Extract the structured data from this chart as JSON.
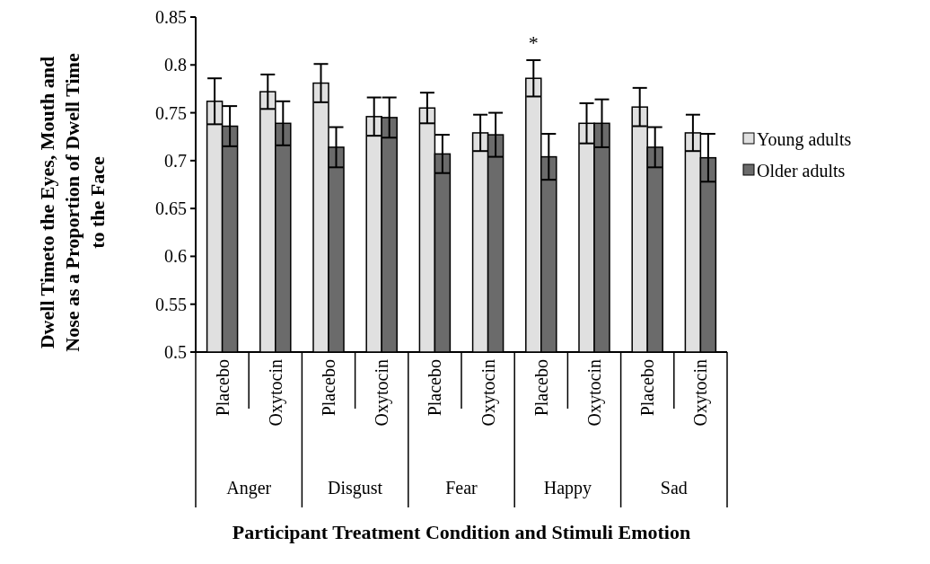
{
  "chart_data": {
    "type": "bar",
    "xlabel": "Participant Treatment Condition and Stimuli Emotion",
    "ylabel": "Dwell Timeto the Eyes, Mouth and Nose as a Proportion of Dwell Time to the Face",
    "categories": [
      "Placebo",
      "Oxytocin",
      "Placebo",
      "Oxytocin",
      "Placebo",
      "Oxytocin",
      "Placebo",
      "Oxytocin",
      "Placebo",
      "Oxytocin"
    ],
    "series": [
      {
        "name": "Young adults",
        "color": "#e0e0e0",
        "values": [
          0.762,
          0.772,
          0.781,
          0.746,
          0.755,
          0.729,
          0.786,
          0.739,
          0.756,
          0.729
        ],
        "errors": [
          0.024,
          0.018,
          0.02,
          0.02,
          0.016,
          0.019,
          0.019,
          0.021,
          0.02,
          0.019
        ]
      },
      {
        "name": "Older adults",
        "color": "#6b6b6b",
        "values": [
          0.736,
          0.739,
          0.714,
          0.745,
          0.707,
          0.727,
          0.704,
          0.739,
          0.714,
          0.703
        ],
        "errors": [
          0.021,
          0.023,
          0.021,
          0.021,
          0.02,
          0.023,
          0.024,
          0.025,
          0.021,
          0.025
        ]
      }
    ],
    "annotations": [
      "Anger",
      "Disgust",
      "Fear",
      "Happy",
      "Sad",
      "*"
    ],
    "ylim": [
      0.5,
      0.85
    ],
    "yticks": [
      0.5,
      0.55,
      0.6,
      0.65,
      0.7,
      0.75,
      0.8,
      0.85
    ],
    "legend": "right",
    "grid": false
  }
}
